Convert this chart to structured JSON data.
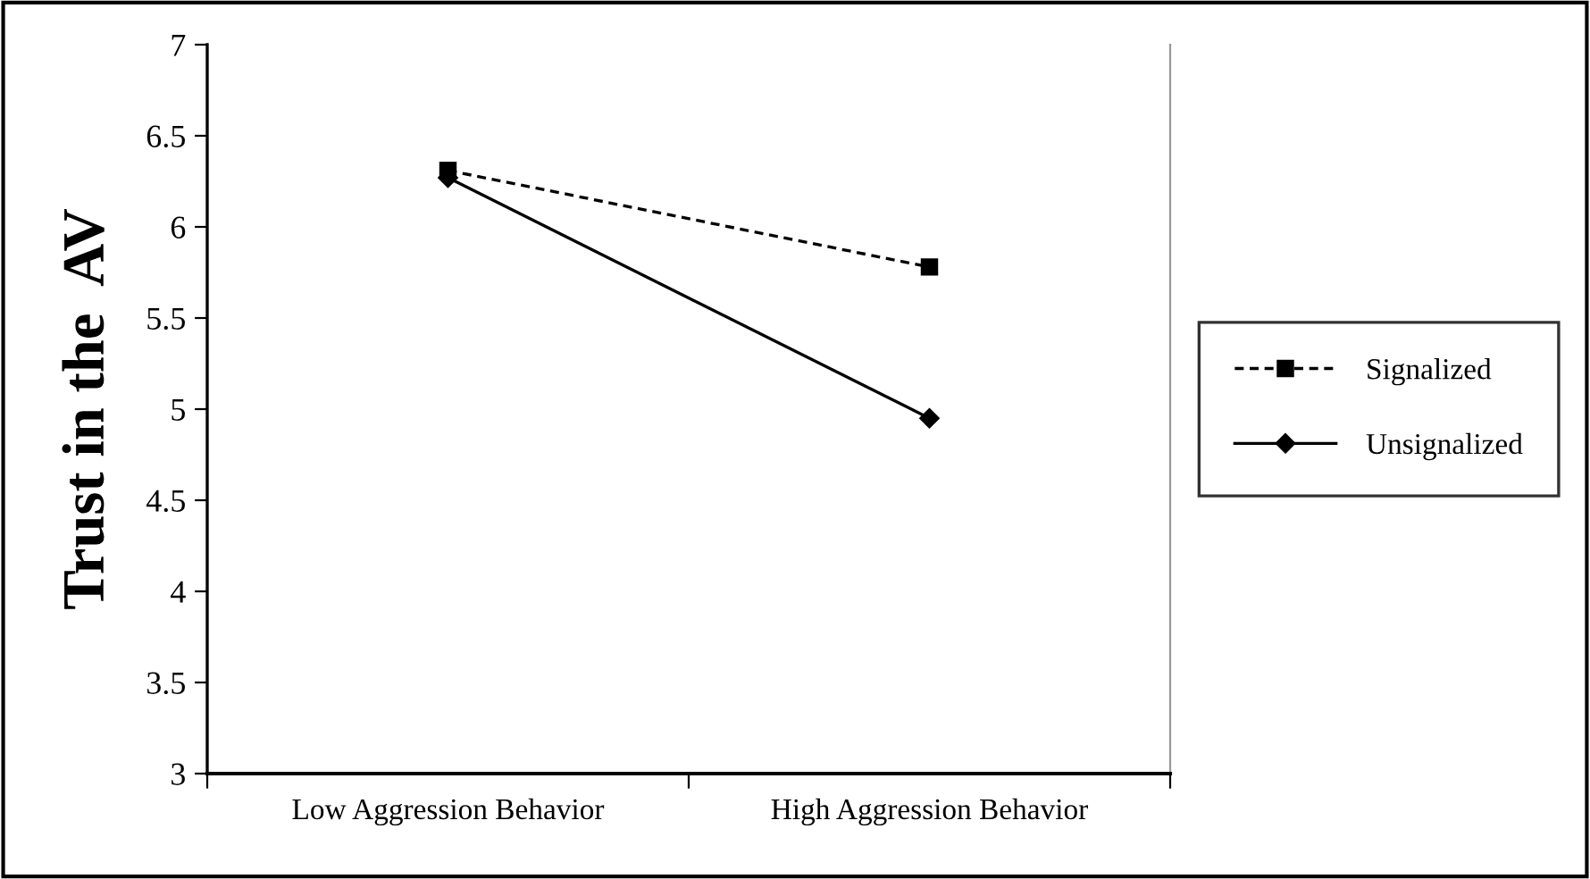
{
  "chart_data": {
    "type": "line",
    "ylabel": "Trust in the  AV",
    "categories": [
      "Low Aggression Behavior",
      "High Aggression Behavior"
    ],
    "series": [
      {
        "name": "Signalized",
        "color": "#000000",
        "values": [
          6.31,
          5.78
        ],
        "marker": "square",
        "line_style": "dashed"
      },
      {
        "name": "Unsignalized",
        "color": "#000000",
        "values": [
          6.27,
          4.95
        ],
        "marker": "diamond",
        "line_style": "solid"
      }
    ],
    "ylim": [
      3,
      7
    ],
    "yticks": [
      3,
      3.5,
      4,
      4.5,
      5,
      5.5,
      6,
      6.5,
      7
    ],
    "grid": false,
    "legend": "right"
  }
}
